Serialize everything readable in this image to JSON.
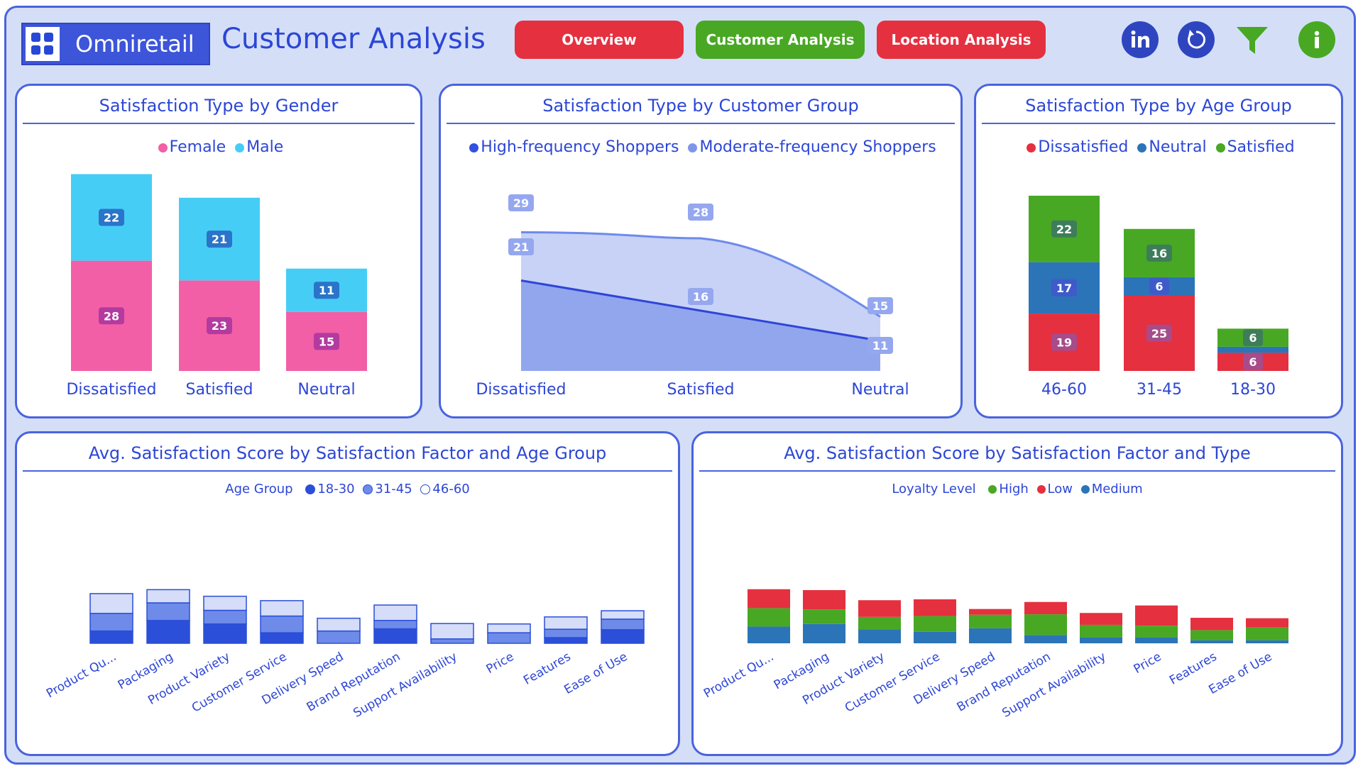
{
  "header": {
    "brand": "Omniretail",
    "title": "Customer Analysis",
    "nav": [
      {
        "label": "Overview",
        "color": "#e5303f"
      },
      {
        "label": "Customer Analysis",
        "color": "#48a823"
      },
      {
        "label": "Location Analysis",
        "color": "#e5303f"
      }
    ],
    "icons": [
      "linkedin-icon",
      "refresh-icon",
      "filter-icon",
      "info-icon"
    ]
  },
  "colors": {
    "female": "#f25fa6",
    "male": "#46cdf6",
    "high_freq": "#3350de",
    "moderate_freq": "#9aabef",
    "dissatisfied": "#e5303f",
    "neutral": "#2c74b8",
    "satisfied": "#48a823",
    "age_18_30": "#2b4fd8",
    "age_31_45": "#6e8bea",
    "age_46_60": "#d5ddf8",
    "loyalty_high": "#48a823",
    "loyalty_low": "#e5303f",
    "loyalty_medium": "#2c74b8"
  },
  "chart_data": [
    {
      "id": "gender",
      "type": "bar",
      "stacked": true,
      "title": "Satisfaction Type by Gender",
      "legend_position": "top",
      "categories": [
        "Dissatisfied",
        "Satisfied",
        "Neutral"
      ],
      "series": [
        {
          "name": "Female",
          "values": [
            28,
            23,
            15
          ]
        },
        {
          "name": "Male",
          "values": [
            22,
            21,
            11
          ]
        }
      ]
    },
    {
      "id": "customer_group",
      "type": "area",
      "title": "Satisfaction Type by Customer Group",
      "legend_position": "top",
      "categories": [
        "Dissatisfied",
        "Satisfied",
        "Neutral"
      ],
      "series": [
        {
          "name": "High-frequency Shoppers",
          "values": [
            21,
            16,
            11
          ]
        },
        {
          "name": "Moderate-frequency Shoppers",
          "values": [
            29,
            28,
            15
          ]
        }
      ]
    },
    {
      "id": "age_group",
      "type": "bar",
      "stacked": true,
      "title": "Satisfaction Type by Age Group",
      "legend_position": "top",
      "categories": [
        "46-60",
        "31-45",
        "18-30"
      ],
      "series": [
        {
          "name": "Dissatisfied",
          "values": [
            19,
            25,
            6
          ]
        },
        {
          "name": "Neutral",
          "values": [
            17,
            6,
            2
          ]
        },
        {
          "name": "Satisfied",
          "values": [
            22,
            16,
            6
          ]
        }
      ]
    },
    {
      "id": "factor_age",
      "type": "bar",
      "stacked": true,
      "title": "Avg. Satisfaction Score by Satisfaction Factor and Age Group",
      "legend_title": "Age Group",
      "legend_position": "top",
      "categories": [
        "Product Qu...",
        "Packaging",
        "Product Variety",
        "Customer Service",
        "Delivery Speed",
        "Brand Reputation",
        "Support Availability",
        "Price",
        "Features",
        "Ease of Use"
      ],
      "series": [
        {
          "name": "18-30",
          "values": [
            2.8,
            5.2,
            4.4,
            2.4,
            0,
            3.3,
            0,
            0,
            1.3,
            3.1
          ]
        },
        {
          "name": "31-45",
          "values": [
            4.0,
            4.0,
            3.1,
            3.8,
            2.8,
            1.9,
            1.0,
            2.4,
            1.9,
            2.4
          ]
        },
        {
          "name": "46-60",
          "values": [
            4.5,
            3.0,
            3.2,
            3.5,
            2.9,
            3.5,
            3.5,
            2.0,
            2.8,
            1.9
          ]
        }
      ]
    },
    {
      "id": "factor_type",
      "type": "bar",
      "stacked": true,
      "title": "Avg. Satisfaction Score by Satisfaction Factor and Type",
      "legend_title": "Loyalty Level",
      "legend_position": "top",
      "categories": [
        "Product Qu...",
        "Packaging",
        "Product Variety",
        "Customer Service",
        "Delivery Speed",
        "Brand Reputation",
        "Support Availability",
        "Price",
        "Features",
        "Ease of Use"
      ],
      "series": [
        {
          "name": "Medium",
          "values": [
            3.8,
            4.4,
            3.2,
            2.6,
            3.4,
            1.9,
            1.4,
            1.4,
            0.7,
            0.7
          ]
        },
        {
          "name": "High",
          "values": [
            4.2,
            3.3,
            2.8,
            3.6,
            3.1,
            4.7,
            2.8,
            2.6,
            2.3,
            2.9
          ]
        },
        {
          "name": "Low",
          "values": [
            4.3,
            4.4,
            3.8,
            3.8,
            1.3,
            2.8,
            2.7,
            4.6,
            2.8,
            2.1
          ]
        }
      ]
    }
  ]
}
